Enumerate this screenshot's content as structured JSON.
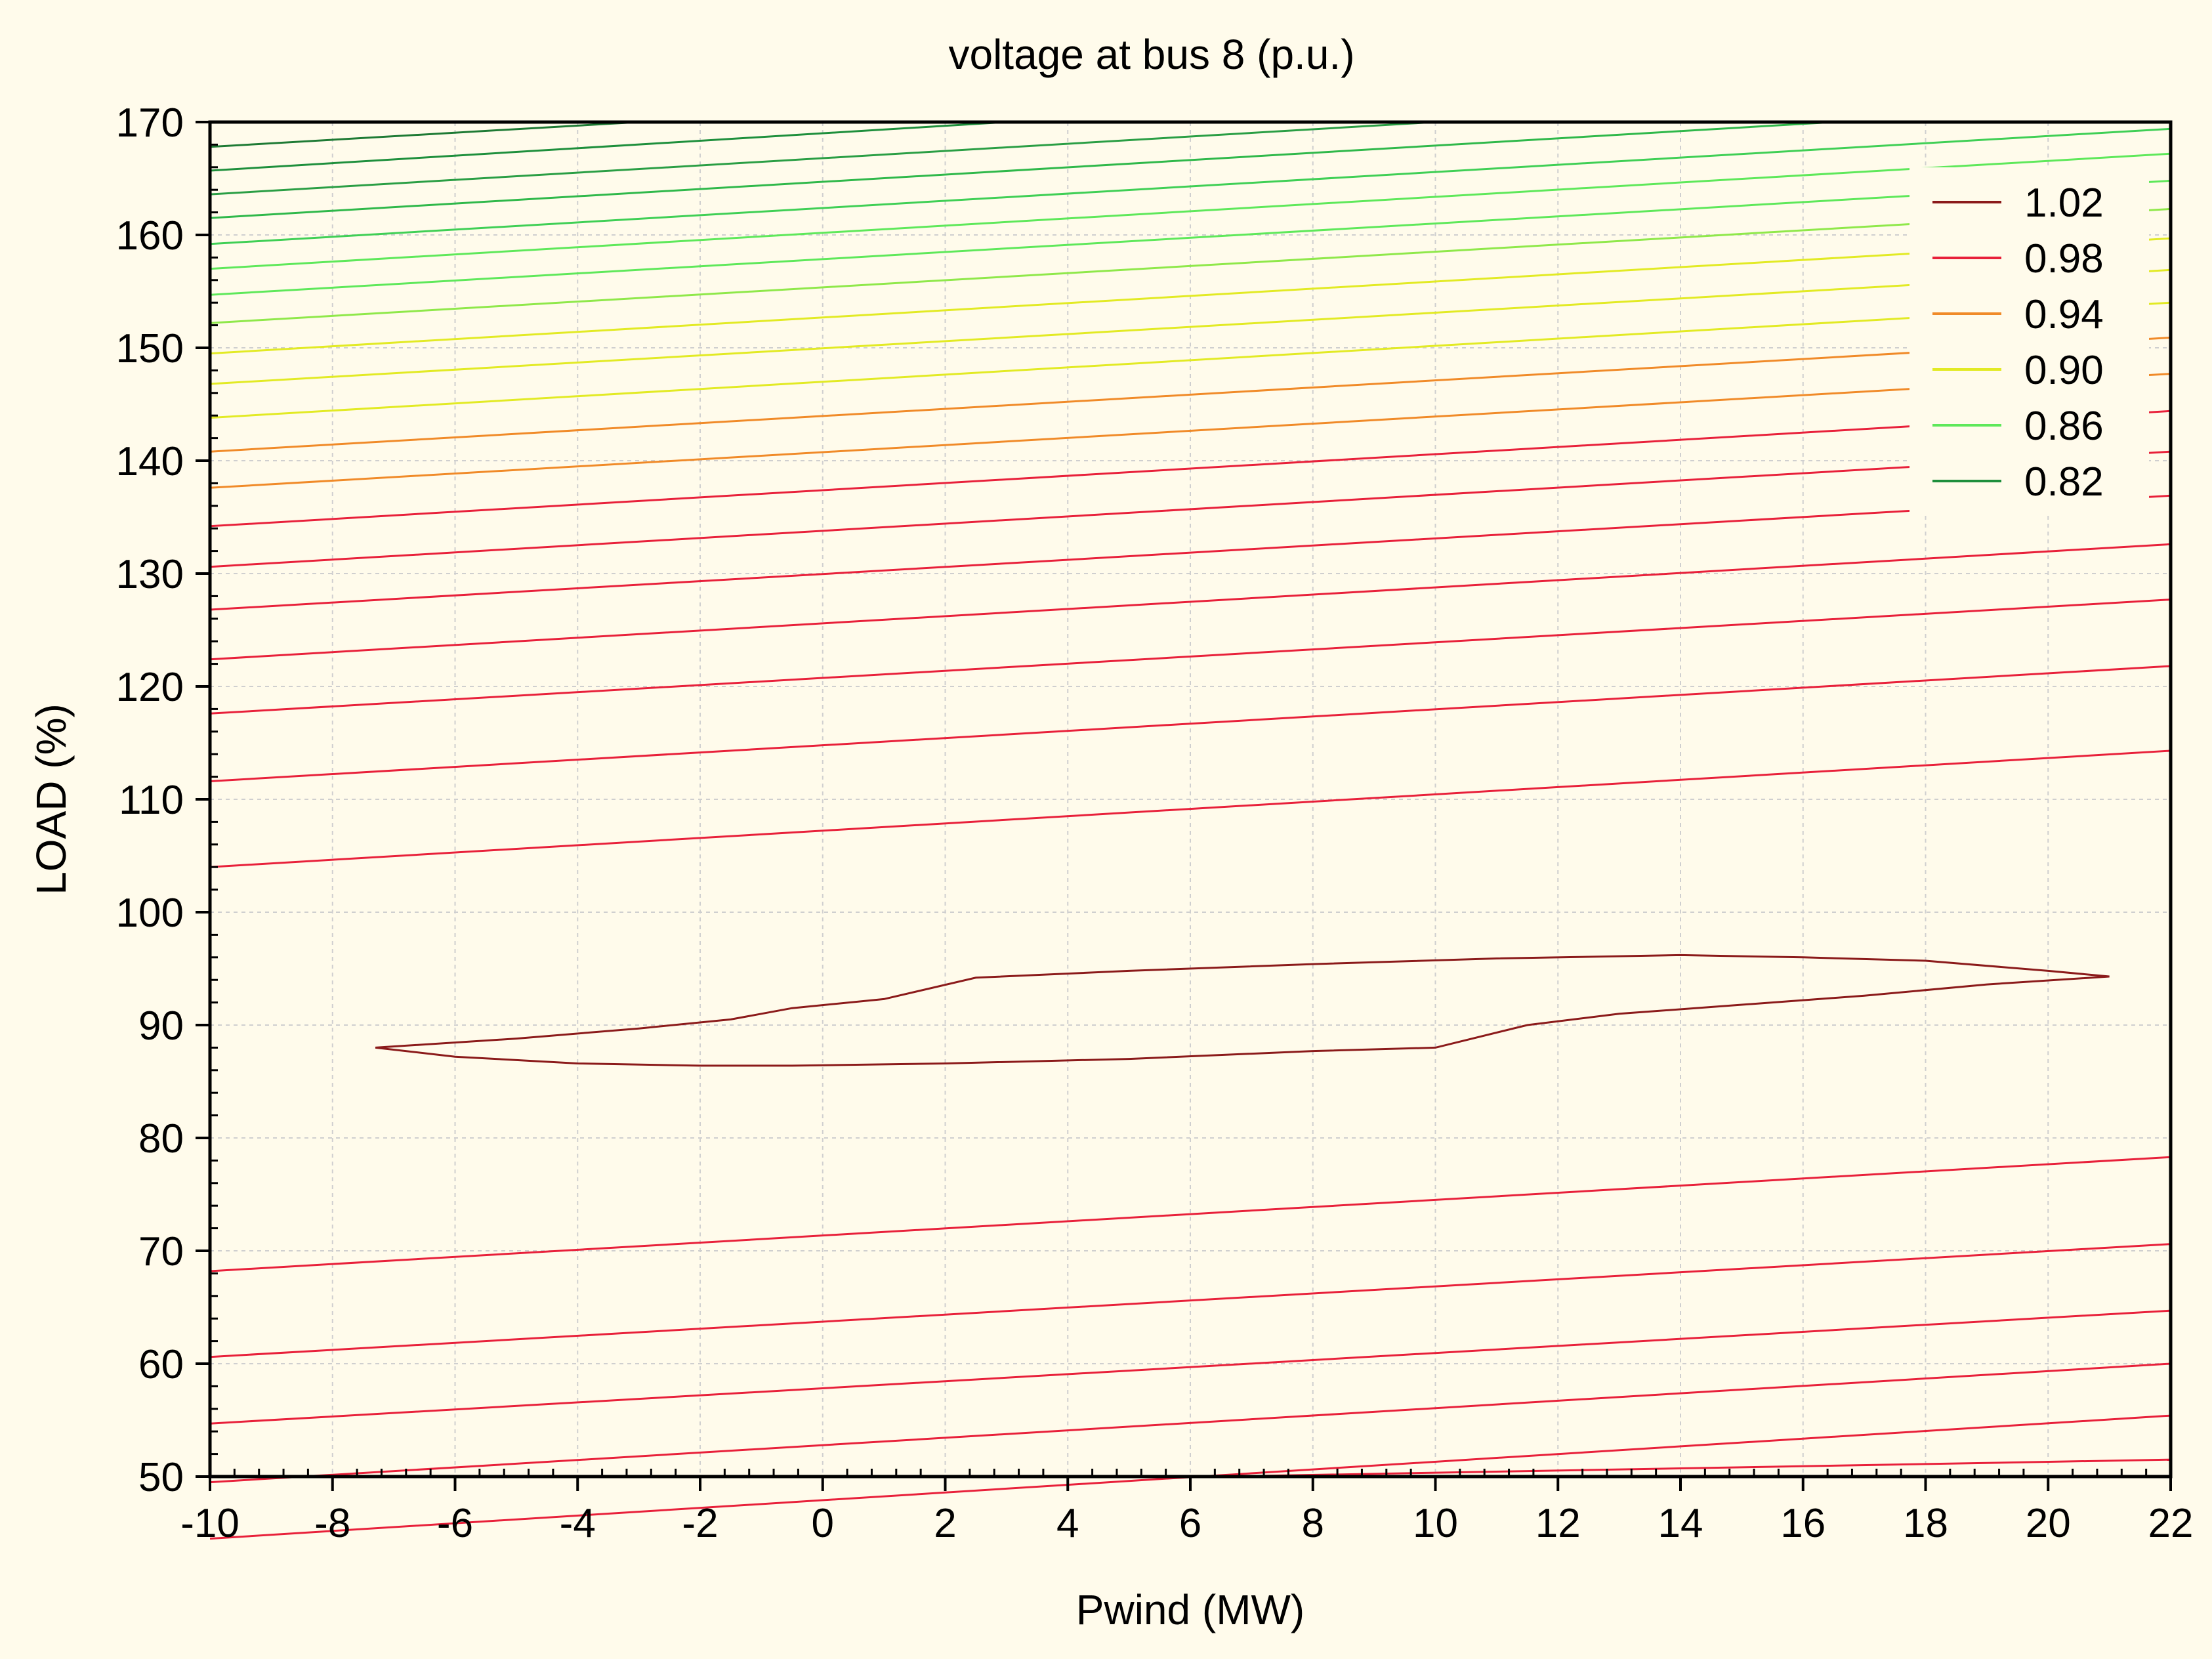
{
  "chart_data": {
    "type": "contour",
    "title": "voltage at bus 8 (p.u.)",
    "xlabel": "Pwind (MW)",
    "ylabel": "LOAD (%)",
    "xlim": [
      -10,
      22
    ],
    "ylim": [
      50,
      170
    ],
    "x_ticks": [
      "-10",
      "-8",
      "-6",
      "-4",
      "-2",
      "0",
      "2",
      "4",
      "6",
      "8",
      "10",
      "12",
      "14",
      "16",
      "18",
      "20",
      "22"
    ],
    "y_ticks": [
      "170",
      "160",
      "150",
      "140",
      "130",
      "120",
      "110",
      "100",
      "90",
      "80",
      "70",
      "60",
      "50"
    ],
    "grid": true,
    "legend_position": "top-right",
    "legend": [
      {
        "label": "1.02",
        "color": "#8b1a1a"
      },
      {
        "label": "0.98",
        "color": "#e8203a"
      },
      {
        "label": "0.94",
        "color": "#f08a28"
      },
      {
        "label": "0.90",
        "color": "#e2ea24"
      },
      {
        "label": "0.86",
        "color": "#5ee85a"
      },
      {
        "label": "0.82",
        "color": "#1e8f3c"
      }
    ],
    "contours": [
      {
        "color": "#e8203a",
        "points": [
          [
            6.5,
            50.0
          ],
          [
            22,
            51.5
          ]
        ]
      },
      {
        "color": "#e8203a",
        "points": [
          [
            -10,
            44.5
          ],
          [
            22,
            55.4
          ]
        ]
      },
      {
        "color": "#e8203a",
        "points": [
          [
            -10,
            49.5
          ],
          [
            22,
            60.0
          ]
        ]
      },
      {
        "color": "#e8203a",
        "points": [
          [
            -10,
            54.7
          ],
          [
            22,
            64.7
          ]
        ]
      },
      {
        "color": "#e8203a",
        "points": [
          [
            -10,
            60.6
          ],
          [
            22,
            70.6
          ]
        ]
      },
      {
        "color": "#e8203a",
        "points": [
          [
            -10,
            68.2
          ],
          [
            22,
            78.3
          ]
        ]
      },
      {
        "color": "#8b1a1a",
        "closed": true,
        "points": [
          [
            -7.3,
            88.0
          ],
          [
            -5,
            88.8
          ],
          [
            -3,
            89.7
          ],
          [
            -1.5,
            90.5
          ],
          [
            -0.5,
            91.5
          ],
          [
            1,
            92.3
          ],
          [
            2.5,
            94.2
          ],
          [
            5,
            94.8
          ],
          [
            8,
            95.4
          ],
          [
            11,
            95.9
          ],
          [
            14,
            96.2
          ],
          [
            16,
            96.0
          ],
          [
            18,
            95.7
          ],
          [
            20,
            94.8
          ],
          [
            21,
            94.3
          ],
          [
            19,
            93.6
          ],
          [
            17,
            92.6
          ],
          [
            15,
            91.8
          ],
          [
            13,
            91.0
          ],
          [
            11.5,
            90.0
          ],
          [
            10,
            88.0
          ],
          [
            8,
            87.7
          ],
          [
            5,
            87.0
          ],
          [
            2,
            86.6
          ],
          [
            -0.5,
            86.4
          ],
          [
            -2,
            86.4
          ],
          [
            -4,
            86.6
          ],
          [
            -6,
            87.2
          ],
          [
            -7.3,
            88.0
          ]
        ]
      },
      {
        "color": "#e8203a",
        "points": [
          [
            -10,
            104.0
          ],
          [
            22,
            114.3
          ]
        ]
      },
      {
        "color": "#e8203a",
        "points": [
          [
            -10,
            111.6
          ],
          [
            22,
            121.8
          ]
        ]
      },
      {
        "color": "#e8203a",
        "points": [
          [
            -10,
            117.6
          ],
          [
            22,
            127.7
          ]
        ]
      },
      {
        "color": "#e8203a",
        "points": [
          [
            -10,
            122.4
          ],
          [
            22,
            132.6
          ]
        ]
      },
      {
        "color": "#e8203a",
        "points": [
          [
            -10,
            126.8
          ],
          [
            22,
            136.9
          ]
        ]
      },
      {
        "color": "#e8203a",
        "points": [
          [
            -10,
            130.6
          ],
          [
            22,
            140.8
          ]
        ]
      },
      {
        "color": "#e8203a",
        "points": [
          [
            -10,
            134.2
          ],
          [
            22,
            144.4
          ]
        ]
      },
      {
        "color": "#f08a28",
        "points": [
          [
            -10,
            137.6
          ],
          [
            22,
            147.7
          ]
        ]
      },
      {
        "color": "#f08a28",
        "points": [
          [
            -10,
            140.8
          ],
          [
            22,
            150.9
          ]
        ]
      },
      {
        "color": "#e2ea24",
        "points": [
          [
            -10,
            143.8
          ],
          [
            22,
            154.0
          ]
        ]
      },
      {
        "color": "#e2ea24",
        "points": [
          [
            -10,
            146.8
          ],
          [
            22,
            156.9
          ]
        ]
      },
      {
        "color": "#e2ea24",
        "points": [
          [
            -10,
            149.5
          ],
          [
            22,
            159.7
          ]
        ]
      },
      {
        "color": "#8fe84a",
        "points": [
          [
            -10,
            152.2
          ],
          [
            22,
            162.3
          ]
        ]
      },
      {
        "color": "#5ee85a",
        "points": [
          [
            -10,
            154.7
          ],
          [
            22,
            164.8
          ]
        ]
      },
      {
        "color": "#5ee85a",
        "points": [
          [
            -10,
            157.0
          ],
          [
            22,
            167.2
          ]
        ]
      },
      {
        "color": "#3fcf55",
        "points": [
          [
            -10,
            159.2
          ],
          [
            22,
            169.4
          ]
        ]
      },
      {
        "color": "#2fb84a",
        "points": [
          [
            -10,
            161.5
          ],
          [
            16.5,
            170.0
          ]
        ]
      },
      {
        "color": "#2a9e44",
        "points": [
          [
            -10,
            163.6
          ],
          [
            10,
            170.0
          ]
        ]
      },
      {
        "color": "#1e8f3c",
        "points": [
          [
            -10,
            165.7
          ],
          [
            3,
            170.0
          ]
        ]
      },
      {
        "color": "#1e7a34",
        "points": [
          [
            -10,
            167.8
          ],
          [
            -3,
            170.0
          ]
        ]
      }
    ]
  }
}
